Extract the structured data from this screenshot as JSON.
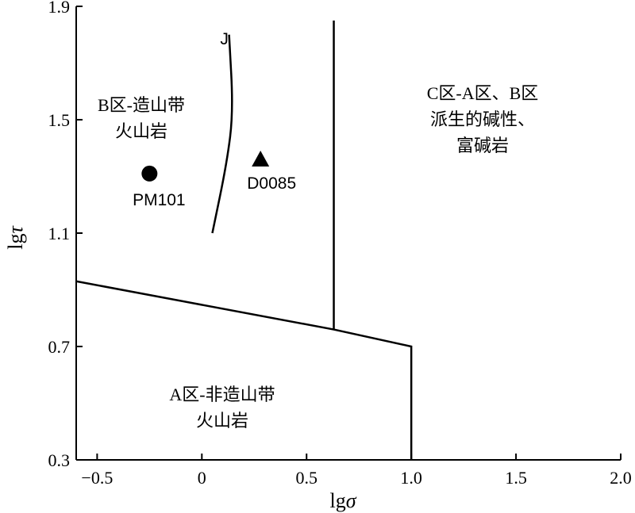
{
  "chart_data": {
    "type": "scatter",
    "xlabel_main": "lg",
    "xlabel_symbol": "σ",
    "ylabel_main": "lg",
    "ylabel_symbol": "τ",
    "xlim": [
      -0.6,
      2.0
    ],
    "ylim": [
      0.3,
      1.9
    ],
    "xticks": [
      -0.5,
      0,
      0.5,
      1.0,
      1.5,
      2.0
    ],
    "xtick_labels": [
      "−0.5",
      "0",
      "0.5",
      "1.0",
      "1.5",
      "2.0"
    ],
    "yticks": [
      0.3,
      0.7,
      1.1,
      1.5,
      1.9
    ],
    "ytick_labels": [
      "0.3",
      "0.7",
      "1.1",
      "1.5",
      "1.9"
    ],
    "boundaries": [
      {
        "name": "A-B boundary",
        "points": [
          [
            -0.6,
            0.93
          ],
          [
            0.63,
            0.76
          ],
          [
            1.0,
            0.7
          ],
          [
            1.0,
            0.3
          ]
        ]
      },
      {
        "name": "B-C boundary",
        "points": [
          [
            0.63,
            0.76
          ],
          [
            0.63,
            1.85
          ]
        ]
      },
      {
        "name": "J",
        "curve": true,
        "points": [
          [
            0.05,
            1.1
          ],
          [
            0.12,
            1.35
          ],
          [
            0.15,
            1.53
          ],
          [
            0.13,
            1.8
          ]
        ]
      }
    ],
    "curve_label": "J",
    "regions": [
      {
        "lines": [
          "B区-造山带",
          "火山岩"
        ]
      },
      {
        "lines": [
          "C区-A区、B区",
          "派生的碱性、",
          "富碱岩"
        ]
      },
      {
        "lines": [
          "A区-非造山带",
          "火山岩"
        ]
      }
    ],
    "series": [
      {
        "label": "PM101",
        "marker": "circle",
        "points": [
          {
            "x": -0.25,
            "y": 1.31
          }
        ]
      },
      {
        "label": "D0085",
        "marker": "triangle",
        "points": [
          {
            "x": 0.28,
            "y": 1.36
          }
        ]
      }
    ]
  }
}
